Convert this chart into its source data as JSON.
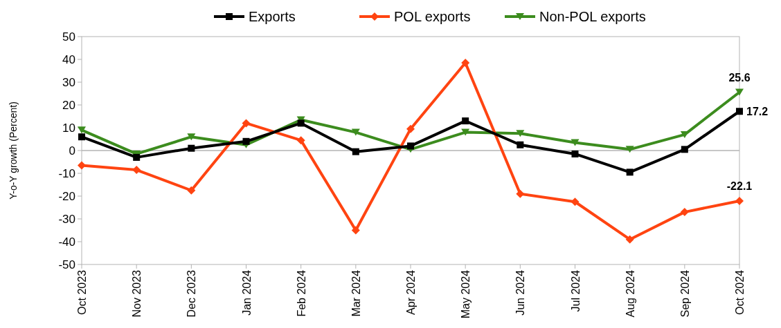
{
  "chart_data": {
    "type": "line",
    "ylabel": "Y-o-Y growth (Percent)",
    "categories": [
      "Oct 2023",
      "Nov 2023",
      "Dec 2023",
      "Jan 2024",
      "Feb 2024",
      "Mar 2024",
      "Apr 2024",
      "May 2024",
      "Jun 2024",
      "Jul 2024",
      "Aug 2024",
      "Sep 2024",
      "Oct 2024"
    ],
    "series": [
      {
        "name": "Exports",
        "color": "#000000",
        "marker": "square",
        "values": [
          6,
          -3,
          1,
          4,
          12,
          -0.5,
          2,
          13,
          2.5,
          -1.5,
          -9.5,
          0.5,
          17.2
        ]
      },
      {
        "name": "POL exports",
        "color": "#ff4411",
        "marker": "diamond",
        "values": [
          -6.5,
          -8.5,
          -17.5,
          12,
          4.5,
          -35,
          9.5,
          38.5,
          -19,
          -22.5,
          -39,
          -27,
          -22.1
        ]
      },
      {
        "name": "Non-POL exports",
        "color": "#3c8c1e",
        "marker": "triangle",
        "values": [
          9,
          -1.5,
          6,
          2.5,
          13.5,
          8,
          0.5,
          8,
          7.5,
          3.5,
          0.5,
          7,
          25.6
        ]
      }
    ],
    "annotations": [
      {
        "text": "25.6",
        "x": "Oct 2024",
        "y": 25.6
      },
      {
        "text": "17.2",
        "x": "Oct 2024",
        "y": 17.2
      },
      {
        "text": "-22.1",
        "x": "Oct 2024",
        "y": -22.1
      }
    ],
    "ylim": [
      -50,
      50
    ],
    "yticks": [
      -50,
      -40,
      -30,
      -20,
      -10,
      0,
      10,
      20,
      30,
      40,
      50
    ],
    "ref_lines": [
      {
        "axis": "y",
        "value": 0,
        "color": "#b3b3b3"
      }
    ],
    "legend": "top",
    "line_style": "solid"
  }
}
